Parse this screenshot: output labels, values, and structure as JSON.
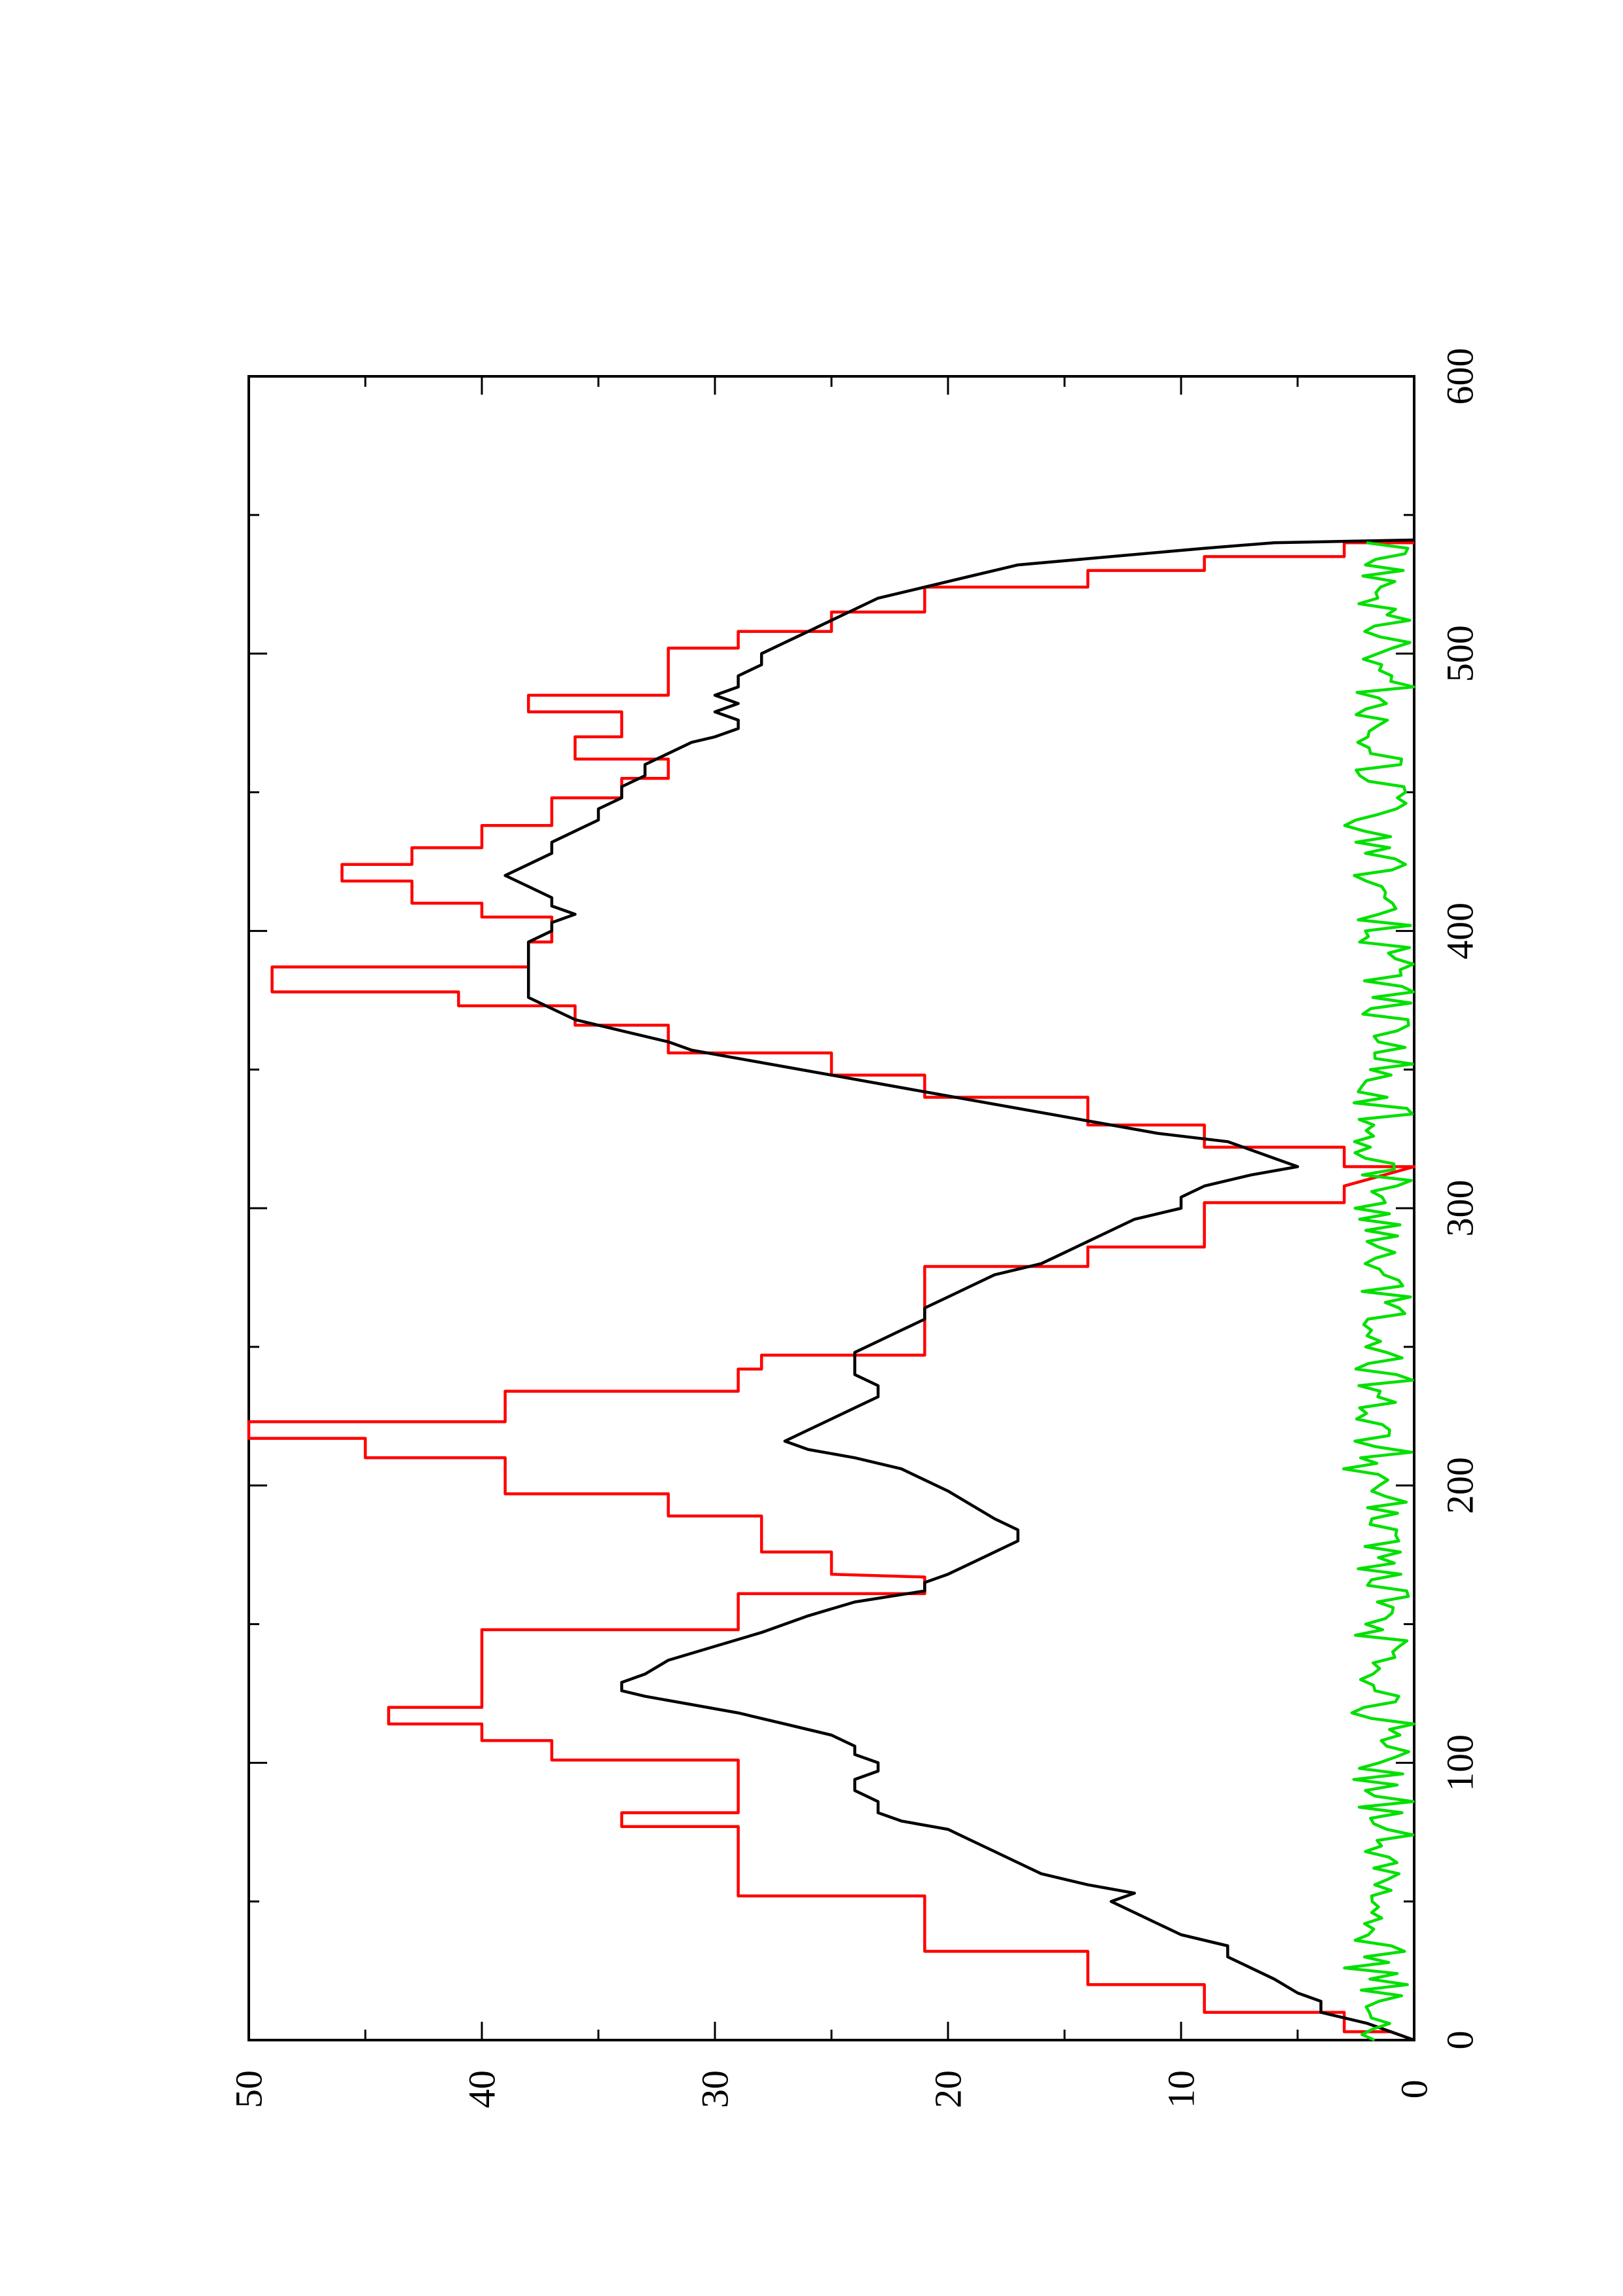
{
  "chart_data": {
    "type": "line",
    "orientation": "rotated-90-clockwise",
    "title": "",
    "xlabel": "",
    "ylabel": "",
    "xlim": [
      0,
      600
    ],
    "ylim": [
      0,
      50
    ],
    "grid": false,
    "x_ticks": [
      {
        "value": 0,
        "label": "0"
      },
      {
        "value": 100,
        "label": "100"
      },
      {
        "value": 200,
        "label": "200"
      },
      {
        "value": 300,
        "label": "300"
      },
      {
        "value": 400,
        "label": "400"
      },
      {
        "value": 500,
        "label": "500"
      },
      {
        "value": 600,
        "label": "600"
      }
    ],
    "x_minor_ticks": [
      50,
      150,
      250,
      350,
      450,
      550
    ],
    "y_ticks": [
      {
        "value": 0,
        "label": "0"
      },
      {
        "value": 10,
        "label": "10"
      },
      {
        "value": 20,
        "label": "20"
      },
      {
        "value": 30,
        "label": "30"
      },
      {
        "value": 40,
        "label": "40"
      },
      {
        "value": 50,
        "label": "50"
      }
    ],
    "y_minor_ticks": [
      5,
      15,
      25,
      35,
      45
    ],
    "series": [
      {
        "color": "#ff0000",
        "points": [
          [
            0,
            0
          ],
          [
            3,
            1
          ],
          [
            3,
            3
          ],
          [
            10,
            3
          ],
          [
            10,
            9
          ],
          [
            20,
            9
          ],
          [
            20,
            14
          ],
          [
            32,
            14
          ],
          [
            32,
            21
          ],
          [
            52,
            21
          ],
          [
            52,
            29
          ],
          [
            77,
            29
          ],
          [
            77,
            34
          ],
          [
            82,
            34
          ],
          [
            82,
            29
          ],
          [
            90,
            29
          ],
          [
            90,
            29
          ],
          [
            101,
            29
          ],
          [
            101,
            37
          ],
          [
            108,
            37
          ],
          [
            108,
            40
          ],
          [
            114,
            40
          ],
          [
            114,
            44
          ],
          [
            120,
            44
          ],
          [
            120,
            40
          ],
          [
            137,
            40
          ],
          [
            137,
            40
          ],
          [
            148,
            40
          ],
          [
            148,
            29
          ],
          [
            161,
            29
          ],
          [
            161,
            21
          ],
          [
            167,
            21
          ],
          [
            168,
            25
          ],
          [
            176,
            25
          ],
          [
            176,
            28
          ],
          [
            189,
            28
          ],
          [
            189,
            32
          ],
          [
            197,
            32
          ],
          [
            197,
            39
          ],
          [
            210,
            39
          ],
          [
            210,
            45
          ],
          [
            217,
            45
          ],
          [
            217,
            50
          ],
          [
            223,
            50
          ],
          [
            223,
            39
          ],
          [
            234,
            39
          ],
          [
            234,
            29
          ],
          [
            242,
            29
          ],
          [
            242,
            28
          ],
          [
            247,
            28
          ],
          [
            247,
            21
          ],
          [
            268,
            21
          ],
          [
            268,
            21
          ],
          [
            279,
            21
          ],
          [
            279,
            14
          ],
          [
            286,
            14
          ],
          [
            286,
            9
          ],
          [
            302,
            9
          ],
          [
            302,
            3
          ],
          [
            308,
            3
          ],
          [
            315,
            0
          ],
          [
            315,
            3
          ],
          [
            322,
            3
          ],
          [
            322,
            9
          ],
          [
            330,
            9
          ],
          [
            330,
            14
          ],
          [
            340,
            14
          ],
          [
            340,
            21
          ],
          [
            348,
            21
          ],
          [
            348,
            25
          ],
          [
            356,
            25
          ],
          [
            356,
            32
          ],
          [
            366,
            32
          ],
          [
            366,
            36
          ],
          [
            373,
            36
          ],
          [
            373,
            41
          ],
          [
            378,
            41
          ],
          [
            378,
            49
          ],
          [
            387,
            49
          ],
          [
            387,
            38
          ],
          [
            396,
            38
          ],
          [
            396,
            37
          ],
          [
            402,
            37
          ],
          [
            402,
            37
          ],
          [
            405,
            37
          ],
          [
            405,
            40
          ],
          [
            410,
            40
          ],
          [
            410,
            43
          ],
          [
            418,
            43
          ],
          [
            418,
            46
          ],
          [
            424,
            46
          ],
          [
            424,
            43
          ],
          [
            430,
            43
          ],
          [
            430,
            40
          ],
          [
            438,
            40
          ],
          [
            438,
            37
          ],
          [
            448,
            37
          ],
          [
            448,
            34
          ],
          [
            455,
            34
          ],
          [
            455,
            32
          ],
          [
            462,
            32
          ],
          [
            462,
            36
          ],
          [
            470,
            36
          ],
          [
            470,
            34
          ],
          [
            479,
            34
          ],
          [
            479,
            38
          ],
          [
            485,
            38
          ],
          [
            485,
            32
          ],
          [
            497,
            32
          ],
          [
            497,
            32
          ],
          [
            502,
            32
          ],
          [
            502,
            29
          ],
          [
            508,
            29
          ],
          [
            508,
            25
          ],
          [
            515,
            25
          ],
          [
            515,
            21
          ],
          [
            524,
            21
          ],
          [
            524,
            14
          ],
          [
            530,
            14
          ],
          [
            530,
            9
          ],
          [
            535,
            9
          ],
          [
            535,
            3
          ],
          [
            540,
            3
          ],
          [
            540,
            0
          ]
        ]
      },
      {
        "color": "#000000",
        "points": [
          [
            0,
            0
          ],
          [
            3,
            1
          ],
          [
            6,
            2
          ],
          [
            8,
            3
          ],
          [
            10,
            4
          ],
          [
            14,
            4
          ],
          [
            17,
            5
          ],
          [
            22,
            6
          ],
          [
            26,
            7
          ],
          [
            30,
            8
          ],
          [
            34,
            8
          ],
          [
            38,
            10
          ],
          [
            42,
            11
          ],
          [
            46,
            12
          ],
          [
            50,
            13
          ],
          [
            53,
            12
          ],
          [
            56,
            14
          ],
          [
            60,
            16
          ],
          [
            64,
            17
          ],
          [
            68,
            18
          ],
          [
            72,
            19
          ],
          [
            76,
            20
          ],
          [
            79,
            22
          ],
          [
            82,
            23
          ],
          [
            86,
            23
          ],
          [
            90,
            24
          ],
          [
            94,
            24
          ],
          [
            97,
            23
          ],
          [
            100,
            23
          ],
          [
            103,
            24
          ],
          [
            106,
            24
          ],
          [
            110,
            25
          ],
          [
            114,
            27
          ],
          [
            118,
            29
          ],
          [
            121,
            31
          ],
          [
            124,
            33
          ],
          [
            126,
            34
          ],
          [
            129,
            34
          ],
          [
            132,
            33
          ],
          [
            137,
            32
          ],
          [
            142,
            30
          ],
          [
            147,
            28
          ],
          [
            153,
            26
          ],
          [
            158,
            24
          ],
          [
            162,
            21
          ],
          [
            165,
            21
          ],
          [
            168,
            20
          ],
          [
            172,
            19
          ],
          [
            176,
            18
          ],
          [
            180,
            17
          ],
          [
            184,
            17
          ],
          [
            188,
            18
          ],
          [
            193,
            19
          ],
          [
            198,
            20
          ],
          [
            202,
            21
          ],
          [
            206,
            22
          ],
          [
            210,
            24
          ],
          [
            213,
            26
          ],
          [
            216,
            27
          ],
          [
            220,
            26
          ],
          [
            224,
            25
          ],
          [
            228,
            24
          ],
          [
            232,
            23
          ],
          [
            236,
            23
          ],
          [
            240,
            24
          ],
          [
            244,
            24
          ],
          [
            248,
            24
          ],
          [
            252,
            23
          ],
          [
            256,
            22
          ],
          [
            260,
            21
          ],
          [
            264,
            21
          ],
          [
            268,
            20
          ],
          [
            272,
            19
          ],
          [
            276,
            18
          ],
          [
            280,
            16
          ],
          [
            284,
            15
          ],
          [
            288,
            14
          ],
          [
            292,
            13
          ],
          [
            296,
            12
          ],
          [
            300,
            10
          ],
          [
            304,
            10
          ],
          [
            308,
            9
          ],
          [
            312,
            7
          ],
          [
            315,
            5
          ],
          [
            318,
            6
          ],
          [
            321,
            7
          ],
          [
            324,
            8
          ],
          [
            327,
            11
          ],
          [
            330,
            13
          ],
          [
            333,
            15
          ],
          [
            336,
            17
          ],
          [
            339,
            19
          ],
          [
            342,
            21
          ],
          [
            345,
            23
          ],
          [
            348,
            25
          ],
          [
            351,
            27
          ],
          [
            354,
            29
          ],
          [
            357,
            31
          ],
          [
            360,
            32
          ],
          [
            364,
            34
          ],
          [
            368,
            36
          ],
          [
            372,
            37
          ],
          [
            376,
            38
          ],
          [
            380,
            38
          ],
          [
            384,
            38
          ],
          [
            388,
            38
          ],
          [
            392,
            38
          ],
          [
            396,
            38
          ],
          [
            400,
            37
          ],
          [
            403,
            37
          ],
          [
            406,
            36
          ],
          [
            409,
            37
          ],
          [
            412,
            37
          ],
          [
            416,
            38
          ],
          [
            420,
            39
          ],
          [
            424,
            38
          ],
          [
            428,
            37
          ],
          [
            432,
            37
          ],
          [
            436,
            36
          ],
          [
            440,
            35
          ],
          [
            444,
            35
          ],
          [
            448,
            34
          ],
          [
            452,
            34
          ],
          [
            456,
            33
          ],
          [
            460,
            33
          ],
          [
            464,
            32
          ],
          [
            468,
            31
          ],
          [
            470,
            30
          ],
          [
            473,
            29
          ],
          [
            476,
            29
          ],
          [
            479,
            30
          ],
          [
            482,
            29
          ],
          [
            485,
            30
          ],
          [
            488,
            29
          ],
          [
            492,
            29
          ],
          [
            496,
            28
          ],
          [
            500,
            28
          ],
          [
            504,
            27
          ],
          [
            508,
            26
          ],
          [
            512,
            25
          ],
          [
            516,
            24
          ],
          [
            520,
            23
          ],
          [
            524,
            21
          ],
          [
            528,
            19
          ],
          [
            532,
            17
          ],
          [
            535,
            13
          ],
          [
            538,
            9
          ],
          [
            540,
            6
          ],
          [
            541,
            0
          ]
        ]
      },
      {
        "color": "#00e000",
        "points": []
      }
    ]
  }
}
